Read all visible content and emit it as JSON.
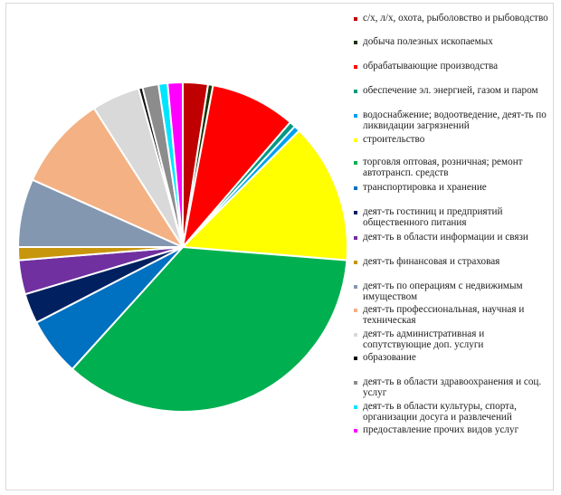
{
  "chart_data": {
    "type": "pie",
    "start_angle_deg": 0,
    "direction": "clockwise",
    "slices": [
      {
        "label": "с/х, л/х, охота, рыболовство и рыбоводство",
        "value": 2.5,
        "color": "#c00000"
      },
      {
        "label": "добыча полезных ископаемых",
        "value": 0.5,
        "color": "#1a3300"
      },
      {
        "label": "обрабатывающие производства",
        "value": 8.5,
        "color": "#ff0000"
      },
      {
        "label": "обеспечение  эл. энергией, газом и паром",
        "value": 0.6,
        "color": "#009980"
      },
      {
        "label": "водоснабжение;  водоотведение,  деят-ть по ликвидации  загрязнений",
        "value": 0.6,
        "color": "#00a0f0"
      },
      {
        "label": "строительство",
        "value": 14.0,
        "color": "#ffff00"
      },
      {
        "label": "торговля оптовая, розничная; ремонт автотрансп. средств",
        "value": 36.0,
        "color": "#00b050"
      },
      {
        "label": "транспортировка и хранение",
        "value": 5.8,
        "color": "#0070c0"
      },
      {
        "label": "деят-ть гостиниц и предприятий общественного  питания",
        "value": 3.0,
        "color": "#002060"
      },
      {
        "label": "деят-ть в области информации и связи",
        "value": 3.4,
        "color": "#7030a0"
      },
      {
        "label": "деят-ть финансовая и страховая",
        "value": 1.3,
        "color": "#c8960c"
      },
      {
        "label": "деят-ть по операциям с  недвижимым имуществом",
        "value": 6.8,
        "color": "#8497b0"
      },
      {
        "label": "деят-ть профессиональная, научная и техническая",
        "value": 9.4,
        "color": "#f4b183"
      },
      {
        "label": "деят-ть административная  и сопутствующие доп.  услуги",
        "value": 4.8,
        "color": "#d9d9d9"
      },
      {
        "label": "образование",
        "value": 0.4,
        "color": "#0d0d0d"
      },
      {
        "label": "деят-ть в области здравоохранения и соц.  услуг",
        "value": 1.6,
        "color": "#8c8c8c"
      },
      {
        "label": "деят-ть в области культуры, спорта, организации досуга и развлечений",
        "value": 0.9,
        "color": "#00e5ff"
      },
      {
        "label": "предоставление  прочих видов услуг",
        "value": 1.5,
        "color": "#ff00ff"
      }
    ]
  }
}
